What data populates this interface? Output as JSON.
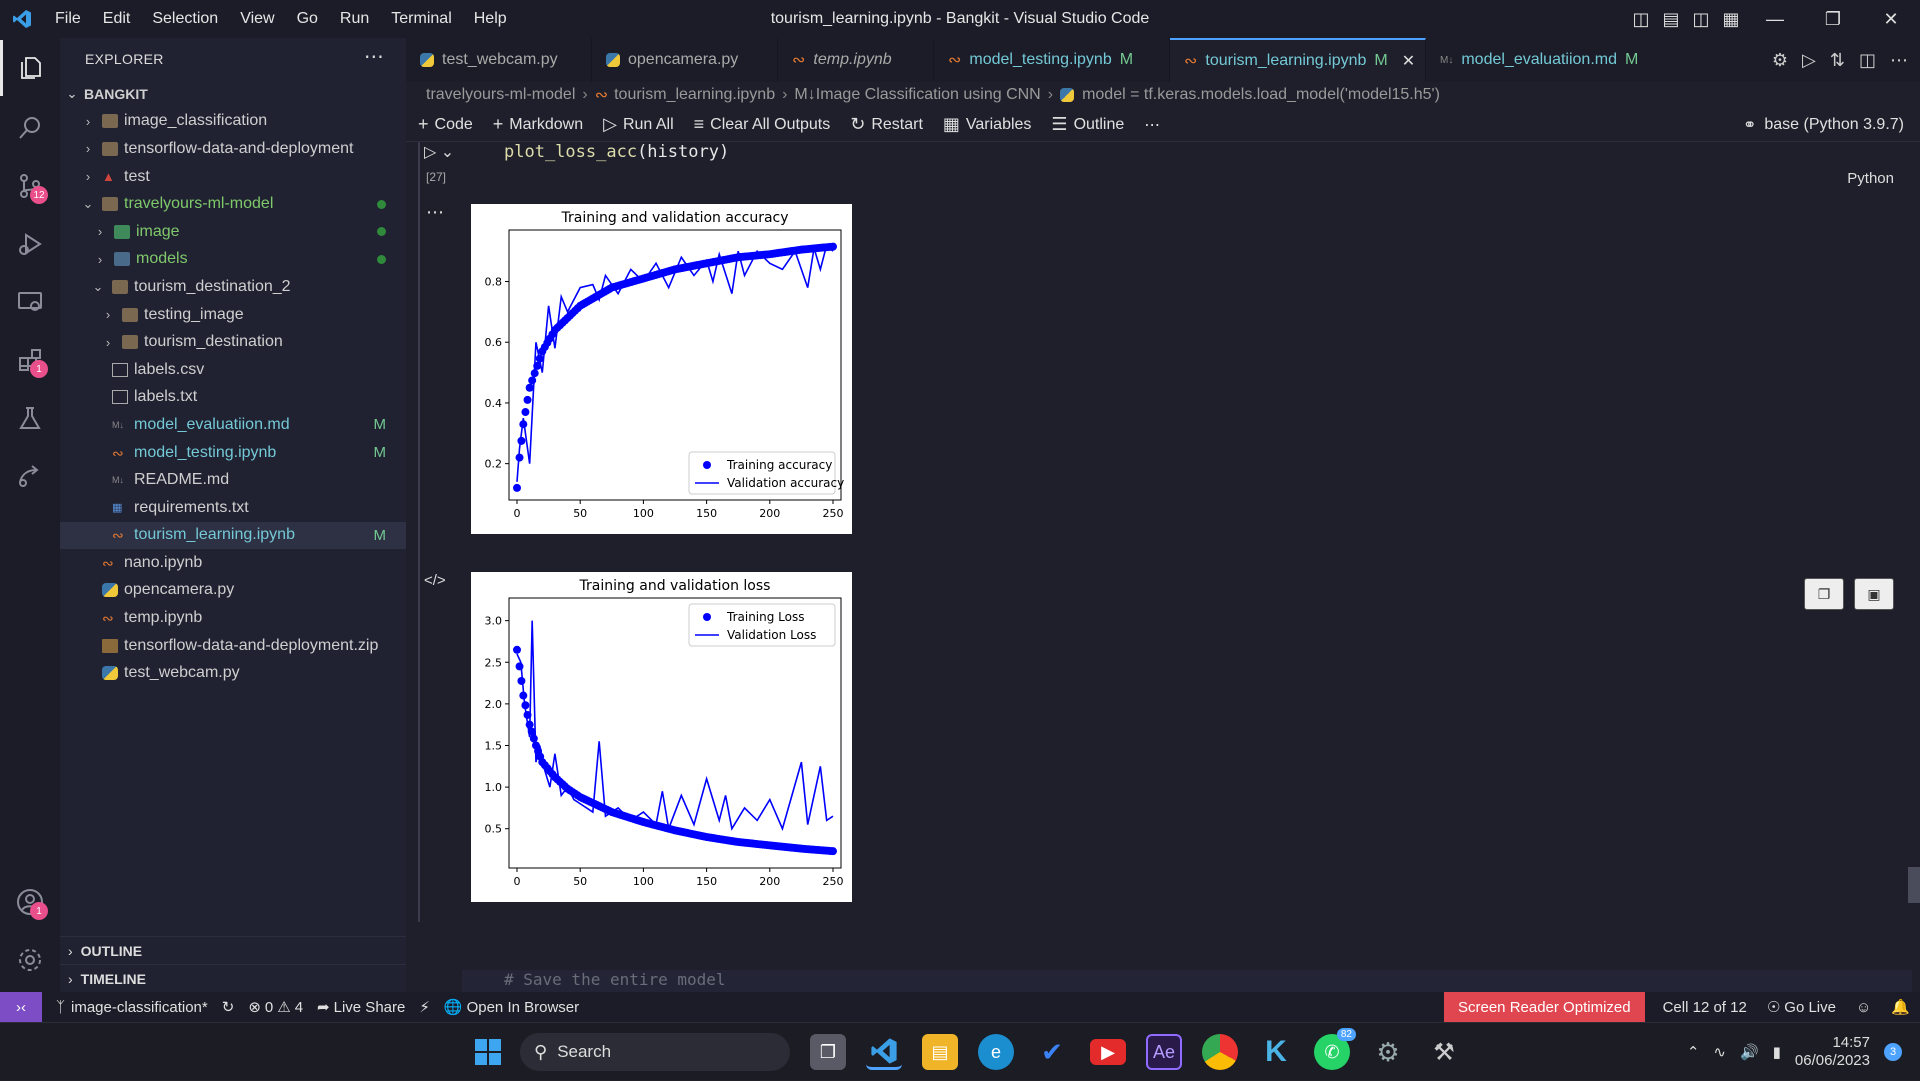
{
  "window": {
    "title": "tourism_learning.ipynb - Bangkit - Visual Studio Code"
  },
  "menu": [
    "File",
    "Edit",
    "Selection",
    "View",
    "Go",
    "Run",
    "Terminal",
    "Help"
  ],
  "activity": {
    "scm_badge": "12",
    "ext_badge": "1",
    "account_badge": "1"
  },
  "explorer": {
    "title": "EXPLORER",
    "root": "BANGKIT",
    "items": [
      {
        "label": "image_classification",
        "modified": ""
      },
      {
        "label": "tensorflow-data-and-deployment",
        "modified": ""
      },
      {
        "label": "test",
        "modified": ""
      },
      {
        "label": "travelyours-ml-model",
        "modified": ""
      },
      {
        "label": "image",
        "modified": ""
      },
      {
        "label": "models",
        "modified": ""
      },
      {
        "label": "tourism_destination_2",
        "modified": ""
      },
      {
        "label": "testing_image",
        "modified": ""
      },
      {
        "label": "tourism_destination",
        "modified": ""
      },
      {
        "label": "labels.csv",
        "modified": ""
      },
      {
        "label": "labels.txt",
        "modified": ""
      },
      {
        "label": "model_evaluatiion.md",
        "modified": "M"
      },
      {
        "label": "model_testing.ipynb",
        "modified": "M"
      },
      {
        "label": "README.md",
        "modified": ""
      },
      {
        "label": "requirements.txt",
        "modified": ""
      },
      {
        "label": "tourism_learning.ipynb",
        "modified": "M"
      },
      {
        "label": "nano.ipynb",
        "modified": ""
      },
      {
        "label": "opencamera.py",
        "modified": ""
      },
      {
        "label": "temp.ipynb",
        "modified": ""
      },
      {
        "label": "tensorflow-data-and-deployment.zip",
        "modified": ""
      },
      {
        "label": "test_webcam.py",
        "modified": ""
      }
    ],
    "outline": "OUTLINE",
    "timeline": "TIMELINE"
  },
  "tabs": [
    {
      "label": "test_webcam.py",
      "mod": ""
    },
    {
      "label": "opencamera.py",
      "mod": ""
    },
    {
      "label": "temp.ipynb",
      "mod": ""
    },
    {
      "label": "model_testing.ipynb",
      "mod": "M"
    },
    {
      "label": "tourism_learning.ipynb",
      "mod": "M"
    },
    {
      "label": "model_evaluatiion.md",
      "mod": "M"
    }
  ],
  "breadcrumb": [
    "travelyours-ml-model",
    "tourism_learning.ipynb",
    "M↓Image Classification using CNN",
    "model = tf.keras.models.load_model('model15.h5')"
  ],
  "toolbar": {
    "code": "Code",
    "markdown": "Markdown",
    "run_all": "Run All",
    "clear": "Clear All Outputs",
    "restart": "Restart",
    "variables": "Variables",
    "outline": "Outline",
    "more": "⋯",
    "kernel": "base (Python 3.9.7)"
  },
  "cell": {
    "code_fn": "plot_loss_acc",
    "code_rest": "(history)",
    "exec": "[27]",
    "lang": "Python",
    "next_comment": "# Save the entire model"
  },
  "chart_data": [
    {
      "type": "scatter+line",
      "title": "Training and validation accuracy",
      "xlim": [
        0,
        250
      ],
      "ylim": [
        0.1,
        0.95
      ],
      "xticks": [
        0,
        50,
        100,
        150,
        200,
        250
      ],
      "yticks": [
        0.2,
        0.4,
        0.6,
        0.8
      ],
      "xtick_labels": [
        "0",
        "50",
        "100",
        "150",
        "200",
        "250"
      ],
      "ytick_labels": [
        "0.2",
        "0.4",
        "0.6",
        "0.8"
      ],
      "legend": "lower-right",
      "series": [
        {
          "name": "Training accuracy",
          "style": "dots",
          "x": [
            0,
            2,
            5,
            10,
            20,
            30,
            50,
            75,
            100,
            125,
            150,
            175,
            200,
            225,
            250
          ],
          "values": [
            0.12,
            0.22,
            0.33,
            0.45,
            0.57,
            0.64,
            0.72,
            0.78,
            0.81,
            0.84,
            0.86,
            0.88,
            0.89,
            0.905,
            0.915
          ]
        },
        {
          "name": "Validation accuracy",
          "style": "line",
          "x": [
            0,
            2,
            5,
            10,
            15,
            20,
            25,
            30,
            35,
            40,
            50,
            60,
            65,
            70,
            80,
            90,
            100,
            110,
            120,
            130,
            140,
            150,
            155,
            160,
            170,
            175,
            180,
            190,
            200,
            210,
            220,
            230,
            235,
            240,
            245,
            250
          ],
          "values": [
            0.14,
            0.25,
            0.35,
            0.2,
            0.6,
            0.5,
            0.72,
            0.58,
            0.75,
            0.7,
            0.78,
            0.79,
            0.74,
            0.82,
            0.76,
            0.84,
            0.8,
            0.86,
            0.78,
            0.88,
            0.82,
            0.87,
            0.8,
            0.89,
            0.76,
            0.9,
            0.82,
            0.9,
            0.86,
            0.84,
            0.9,
            0.78,
            0.91,
            0.84,
            0.92,
            0.9
          ]
        }
      ]
    },
    {
      "type": "scatter+line",
      "title": "Training and validation loss",
      "xlim": [
        0,
        250
      ],
      "ylim": [
        0.1,
        3.2
      ],
      "xticks": [
        0,
        50,
        100,
        150,
        200,
        250
      ],
      "yticks": [
        0.5,
        1.0,
        1.5,
        2.0,
        2.5,
        3.0
      ],
      "xtick_labels": [
        "0",
        "50",
        "100",
        "150",
        "200",
        "250"
      ],
      "ytick_labels": [
        "0.5",
        "1.0",
        "1.5",
        "2.0",
        "2.5",
        "3.0"
      ],
      "legend": "upper-right",
      "series": [
        {
          "name": "Training Loss",
          "style": "dots",
          "x": [
            0,
            2,
            5,
            10,
            15,
            20,
            30,
            40,
            50,
            75,
            100,
            125,
            150,
            175,
            200,
            225,
            250
          ],
          "values": [
            2.65,
            2.45,
            2.1,
            1.75,
            1.5,
            1.3,
            1.12,
            0.98,
            0.88,
            0.7,
            0.58,
            0.48,
            0.4,
            0.34,
            0.3,
            0.26,
            0.23
          ]
        },
        {
          "name": "Validation Loss",
          "style": "line",
          "x": [
            0,
            3,
            6,
            10,
            12,
            15,
            18,
            22,
            26,
            30,
            35,
            40,
            45,
            50,
            60,
            65,
            70,
            80,
            90,
            100,
            110,
            115,
            120,
            130,
            140,
            150,
            160,
            165,
            170,
            180,
            190,
            200,
            210,
            225,
            230,
            240,
            245,
            250
          ],
          "values": [
            2.6,
            2.5,
            2.0,
            1.6,
            3.0,
            1.3,
            1.5,
            1.2,
            1.0,
            1.4,
            0.9,
            1.0,
            0.85,
            0.8,
            0.7,
            1.55,
            0.65,
            0.75,
            0.6,
            0.7,
            0.55,
            0.95,
            0.5,
            0.9,
            0.55,
            1.1,
            0.6,
            0.9,
            0.5,
            0.75,
            0.6,
            0.85,
            0.5,
            1.3,
            0.55,
            1.25,
            0.6,
            0.65
          ]
        }
      ]
    }
  ],
  "status": {
    "branch": "image-classification*",
    "problems": "⊗00",
    "warnings": "⚠ 4",
    "errors_text": "0",
    "warn_text": "4",
    "live_share": "Live Share",
    "open_browser": "Open In Browser",
    "screen_reader": "Screen Reader Optimized",
    "cell": "Cell 12 of 12",
    "go_live": "Go Live"
  },
  "taskbar": {
    "search": "Search",
    "whatsapp_badge": "82",
    "time": "14:57",
    "date": "06/06/2023",
    "notif": "3"
  }
}
